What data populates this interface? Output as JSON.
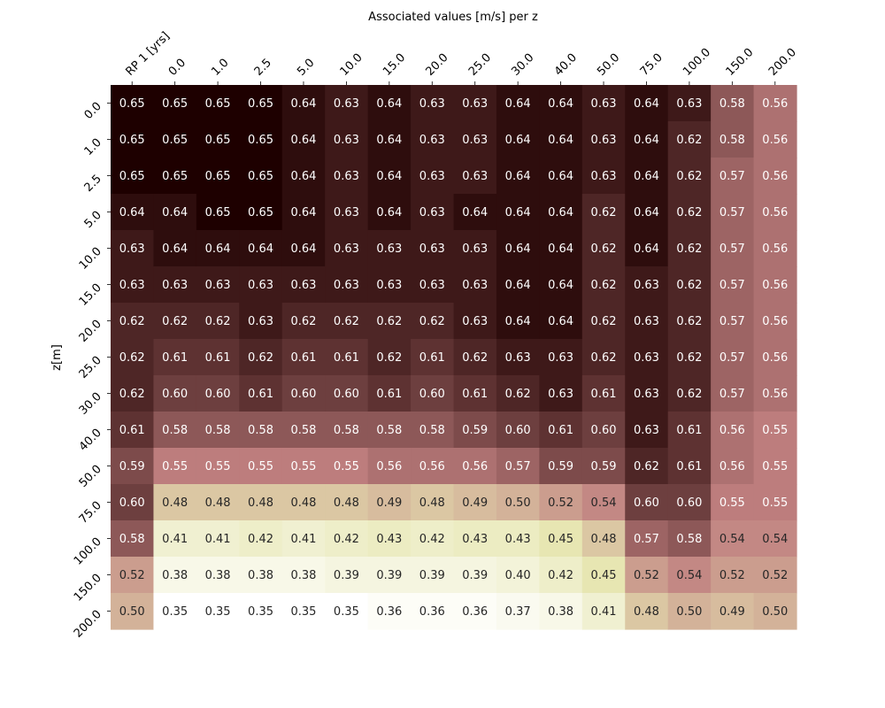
{
  "chart_data": {
    "type": "heatmap",
    "title": "Associated values [m/s] per z",
    "xlabel": "",
    "ylabel": "z[m]",
    "x_tick_position": "top",
    "x_tick_rotation_deg": 45,
    "y_tick_rotation_deg": 45,
    "colorbar": false,
    "grid": false,
    "columns": [
      "RP 1 [yrs]",
      "0.0",
      "1.0",
      "2.5",
      "5.0",
      "10.0",
      "15.0",
      "20.0",
      "25.0",
      "30.0",
      "40.0",
      "50.0",
      "75.0",
      "100.0",
      "150.0",
      "200.0"
    ],
    "rows": [
      "0.0",
      "1.0",
      "2.5",
      "5.0",
      "10.0",
      "15.0",
      "20.0",
      "25.0",
      "30.0",
      "40.0",
      "50.0",
      "75.0",
      "100.0",
      "150.0",
      "200.0"
    ],
    "colors": {
      "low": "#ffffff",
      "low_mid": "#e7e7b3",
      "mid": "#c08080",
      "high": "#1e0000",
      "label_dark": "#262626",
      "label_light": "#ffffff"
    },
    "values": [
      [
        0.65,
        0.65,
        0.65,
        0.65,
        0.64,
        0.63,
        0.64,
        0.63,
        0.63,
        0.64,
        0.64,
        0.63,
        0.64,
        0.63,
        0.58,
        0.56
      ],
      [
        0.65,
        0.65,
        0.65,
        0.65,
        0.64,
        0.63,
        0.64,
        0.63,
        0.63,
        0.64,
        0.64,
        0.63,
        0.64,
        0.62,
        0.58,
        0.56
      ],
      [
        0.65,
        0.65,
        0.65,
        0.65,
        0.64,
        0.63,
        0.64,
        0.63,
        0.63,
        0.64,
        0.64,
        0.63,
        0.64,
        0.62,
        0.57,
        0.56
      ],
      [
        0.64,
        0.64,
        0.65,
        0.65,
        0.64,
        0.63,
        0.64,
        0.63,
        0.64,
        0.64,
        0.64,
        0.62,
        0.64,
        0.62,
        0.57,
        0.56
      ],
      [
        0.63,
        0.64,
        0.64,
        0.64,
        0.64,
        0.63,
        0.63,
        0.63,
        0.63,
        0.64,
        0.64,
        0.62,
        0.64,
        0.62,
        0.57,
        0.56
      ],
      [
        0.63,
        0.63,
        0.63,
        0.63,
        0.63,
        0.63,
        0.63,
        0.63,
        0.63,
        0.64,
        0.64,
        0.62,
        0.63,
        0.62,
        0.57,
        0.56
      ],
      [
        0.62,
        0.62,
        0.62,
        0.63,
        0.62,
        0.62,
        0.62,
        0.62,
        0.63,
        0.64,
        0.64,
        0.62,
        0.63,
        0.62,
        0.57,
        0.56
      ],
      [
        0.62,
        0.61,
        0.61,
        0.62,
        0.61,
        0.61,
        0.62,
        0.61,
        0.62,
        0.63,
        0.63,
        0.62,
        0.63,
        0.62,
        0.57,
        0.56
      ],
      [
        0.62,
        0.6,
        0.6,
        0.61,
        0.6,
        0.6,
        0.61,
        0.6,
        0.61,
        0.62,
        0.63,
        0.61,
        0.63,
        0.62,
        0.57,
        0.56
      ],
      [
        0.61,
        0.58,
        0.58,
        0.58,
        0.58,
        0.58,
        0.58,
        0.58,
        0.59,
        0.6,
        0.61,
        0.6,
        0.63,
        0.61,
        0.56,
        0.55
      ],
      [
        0.59,
        0.55,
        0.55,
        0.55,
        0.55,
        0.55,
        0.56,
        0.56,
        0.56,
        0.57,
        0.59,
        0.59,
        0.62,
        0.61,
        0.56,
        0.55
      ],
      [
        0.6,
        0.48,
        0.48,
        0.48,
        0.48,
        0.48,
        0.49,
        0.48,
        0.49,
        0.5,
        0.52,
        0.54,
        0.6,
        0.6,
        0.55,
        0.55
      ],
      [
        0.58,
        0.41,
        0.41,
        0.42,
        0.41,
        0.42,
        0.43,
        0.42,
        0.43,
        0.43,
        0.45,
        0.48,
        0.57,
        0.58,
        0.54,
        0.54
      ],
      [
        0.52,
        0.38,
        0.38,
        0.38,
        0.38,
        0.39,
        0.39,
        0.39,
        0.39,
        0.4,
        0.42,
        0.45,
        0.52,
        0.54,
        0.52,
        0.52
      ],
      [
        0.5,
        0.35,
        0.35,
        0.35,
        0.35,
        0.35,
        0.36,
        0.36,
        0.36,
        0.37,
        0.38,
        0.41,
        0.48,
        0.5,
        0.49,
        0.5
      ]
    ]
  }
}
